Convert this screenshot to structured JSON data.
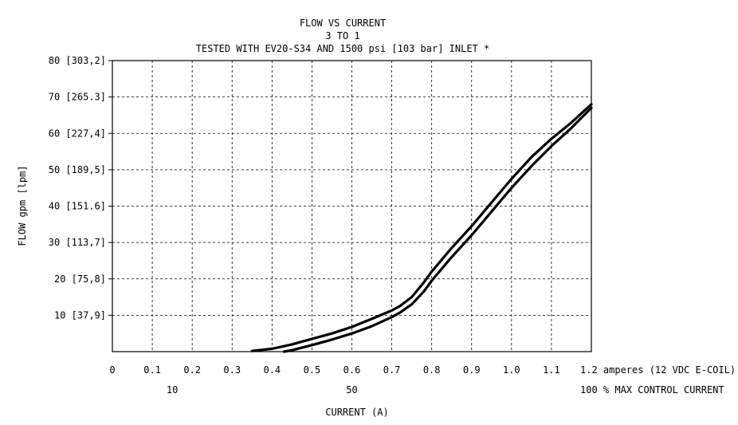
{
  "chart_data": {
    "type": "line",
    "title": "FLOW VS CURRENT",
    "subtitle_1": "3 TO 1",
    "subtitle_2": "TESTED WITH EV20-S34 AND 1500 psi [103 bar] INLET *",
    "xlabel": "CURRENT (A)",
    "ylabel": "FLOW gpm [lpm]",
    "xlim": [
      0,
      1.2
    ],
    "ylim": [
      0,
      80
    ],
    "grid": true,
    "x_ticks": [
      {
        "value": 0,
        "label": "0"
      },
      {
        "value": 0.1,
        "label": "0.1"
      },
      {
        "value": 0.2,
        "label": "0.2"
      },
      {
        "value": 0.3,
        "label": "0.3"
      },
      {
        "value": 0.4,
        "label": "0.4"
      },
      {
        "value": 0.5,
        "label": "0.5"
      },
      {
        "value": 0.6,
        "label": "0.6"
      },
      {
        "value": 0.7,
        "label": "0.7"
      },
      {
        "value": 0.8,
        "label": "0.8"
      },
      {
        "value": 0.9,
        "label": "0.9"
      },
      {
        "value": 1.0,
        "label": "1.0"
      },
      {
        "value": 1.1,
        "label": "1.1"
      },
      {
        "value": 1.2,
        "label": "1.2 amperes (12 VDC E-COIL)"
      }
    ],
    "secondary_x_ticks": [
      {
        "value": 0.15,
        "label": "10"
      },
      {
        "value": 0.6,
        "label": "50"
      },
      {
        "value": 1.2,
        "label": "100 % MAX CONTROL CURRENT"
      }
    ],
    "y_ticks": [
      {
        "value": 10,
        "label": "10 [37,9]"
      },
      {
        "value": 20,
        "label": "20 [75,8]"
      },
      {
        "value": 30,
        "label": "30 [113,7]"
      },
      {
        "value": 40,
        "label": "40 [151.6]"
      },
      {
        "value": 50,
        "label": "50 [189,5]"
      },
      {
        "value": 60,
        "label": "60 [227,4]"
      },
      {
        "value": 70,
        "label": "70 [265.3]"
      },
      {
        "value": 80,
        "label": "80 [303,2]"
      }
    ],
    "series": [
      {
        "x": [
          0.35,
          0.4,
          0.45,
          0.5,
          0.55,
          0.6,
          0.65,
          0.7,
          0.72,
          0.75,
          0.78,
          0.8,
          0.85,
          0.9,
          0.95,
          1.0,
          1.05,
          1.1,
          1.15,
          1.2
        ],
        "y": [
          0.2,
          0.8,
          2.0,
          3.5,
          5.0,
          6.8,
          9.0,
          11.3,
          12.5,
          15.0,
          19.0,
          22.0,
          28.5,
          34.5,
          41.0,
          47.5,
          53.5,
          58.5,
          63.0,
          68.0
        ]
      },
      {
        "x": [
          0.43,
          0.45,
          0.5,
          0.55,
          0.6,
          0.65,
          0.7,
          0.72,
          0.75,
          0.78,
          0.8,
          0.85,
          0.9,
          0.95,
          1.0,
          1.05,
          1.1,
          1.15,
          1.2
        ],
        "y": [
          0.0,
          0.4,
          1.8,
          3.3,
          5.0,
          7.0,
          9.5,
          10.7,
          13.0,
          16.5,
          19.5,
          26.0,
          32.0,
          38.5,
          45.0,
          51.0,
          56.5,
          61.5,
          67.0
        ]
      }
    ]
  }
}
